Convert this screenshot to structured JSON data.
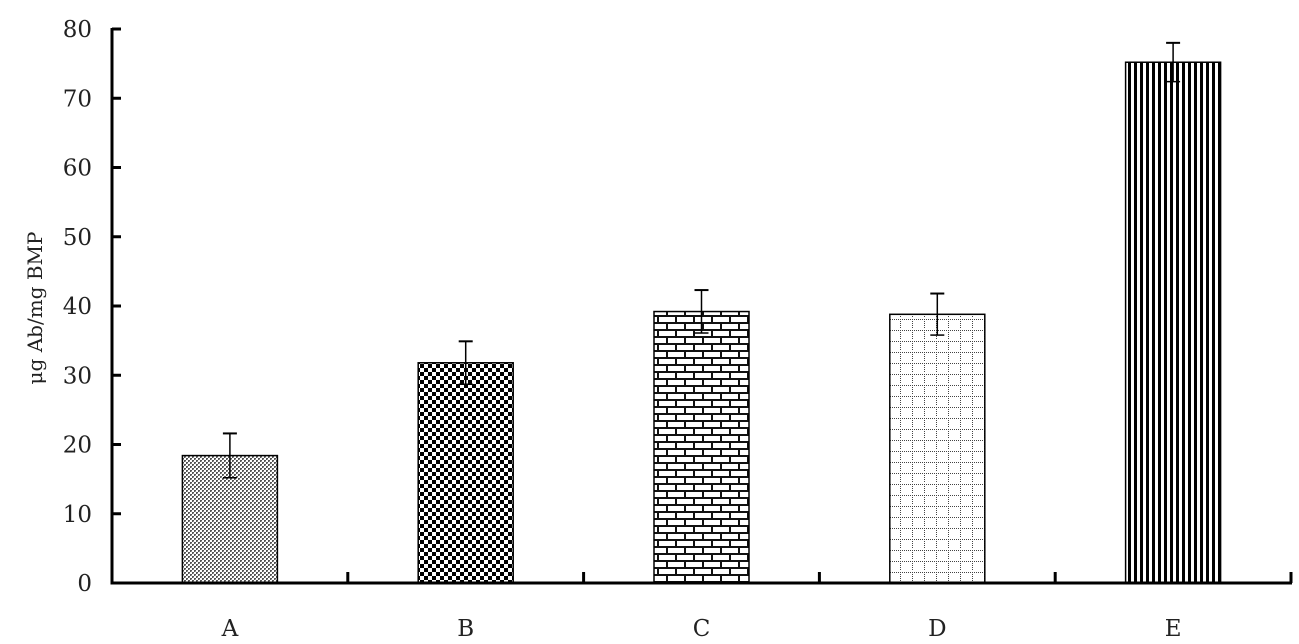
{
  "chart_data": {
    "type": "bar",
    "title": "",
    "xlabel": "",
    "ylabel": "μg Ab/mg BMP",
    "ylim": [
      0,
      80
    ],
    "yticks": [
      0,
      10,
      20,
      30,
      40,
      50,
      60,
      70,
      80
    ],
    "categories": [
      "A",
      "B",
      "C",
      "D",
      "E"
    ],
    "values": [
      18.4,
      31.8,
      39.2,
      38.8,
      75.2
    ],
    "errors": [
      3.2,
      3.1,
      3.1,
      3.0,
      2.8
    ],
    "patterns": [
      "fine-crosshatch",
      "checkerboard",
      "brick",
      "dotted-grid",
      "vertical-stripes"
    ],
    "grid": false,
    "legend": null,
    "colors": {
      "bar_fill": "#000000",
      "background": "#ffffff",
      "axis": "#000000"
    }
  },
  "axis": {
    "ylabel": "μg Ab/mg BMP",
    "yticks": [
      "0",
      "10",
      "20",
      "30",
      "40",
      "50",
      "60",
      "70",
      "80"
    ],
    "categories": [
      "A",
      "B",
      "C",
      "D",
      "E"
    ]
  }
}
